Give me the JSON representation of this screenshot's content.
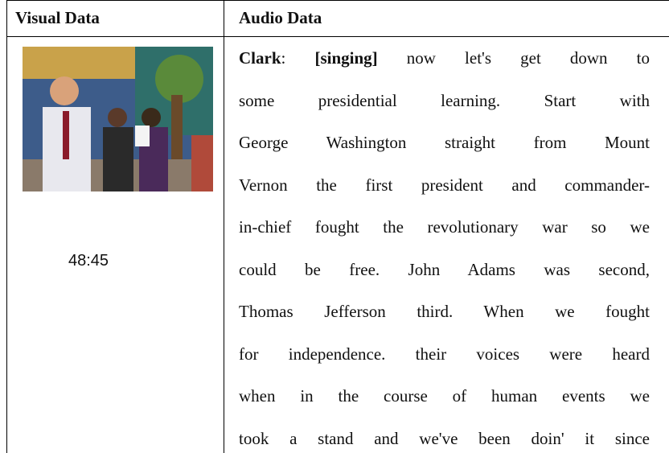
{
  "table": {
    "headers": [
      "Visual Data",
      "Audio Data"
    ],
    "rows": [
      {
        "visual": {
          "timestamp": "48:45"
        },
        "audio": {
          "speaker": "Clark",
          "speaker_suffix": ":",
          "cue": "[singing]",
          "lines": [
            "now let's get down to",
            "some presidential learning. Start with",
            "George Washington straight from Mount",
            "Vernon the first president and commander-",
            "in-chief fought the revolutionary war so we",
            "could be free. John Adams was second,",
            "Thomas Jefferson third. When we fought",
            "for independence. their voices were heard",
            "when in the course of human events we",
            "took a stand and we've been doin' it since"
          ]
        }
      }
    ]
  }
}
